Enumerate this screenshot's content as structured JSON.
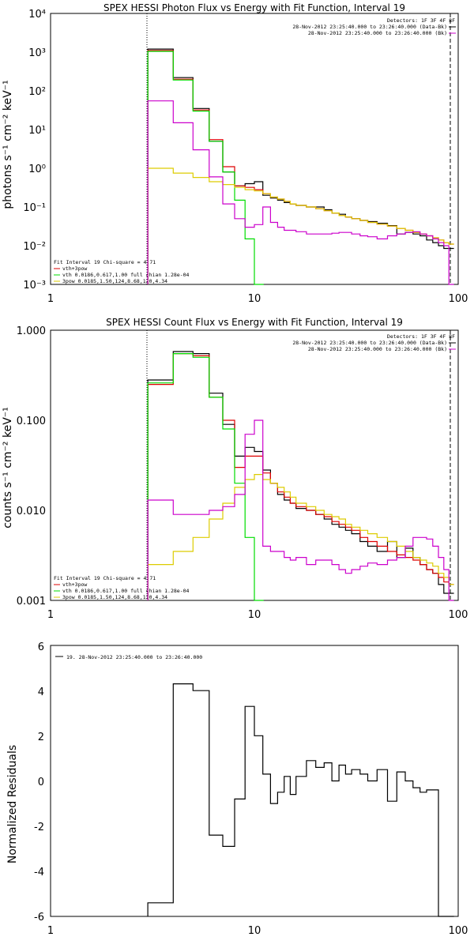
{
  "chart_data": [
    {
      "type": "line",
      "title": "SPEX HESSI Photon Flux vs Energy with Fit Function, Interval 19",
      "xlabel": "",
      "ylabel": "photons s⁻¹ cm⁻² keV⁻¹",
      "xscale": "log",
      "yscale": "log",
      "xlim": [
        1,
        100
      ],
      "ylim": [
        0.001,
        10000
      ],
      "x_ticks": [
        "1",
        "10",
        "100"
      ],
      "y_ticks": [
        "10⁻³",
        "10⁻²",
        "10⁻¹",
        "10⁰",
        "10¹",
        "10²",
        "10³",
        "10⁴"
      ],
      "fit_range": [
        3,
        90
      ],
      "info_right": [
        "Detectors: 1F 3F 4F 8F",
        "28-Nov-2012 23:25:40.000 to 23:26:40.000 (Data-Bk)",
        "28-Nov-2012 23:25:40.000 to 23:26:40.000 (Bk)"
      ],
      "info_left": [
        "Fit Interval 19   Chi-square = 4.71",
        "vth+3pow",
        "vth 0.0186,0.617,1.00  full chian 1.28e-04",
        "3pow 0.0185,1.50,124,8.68,120,4.34"
      ],
      "legend_position": "bottom-left",
      "series": [
        {
          "name": "",
          "color": "#000000",
          "x": [
            3,
            4,
            5,
            6,
            7,
            8,
            9,
            10,
            11,
            12,
            13,
            14,
            15,
            16,
            18,
            20,
            22,
            24,
            26,
            28,
            30,
            33,
            36,
            40,
            45,
            50,
            55,
            60,
            65,
            70,
            75,
            80,
            85,
            90
          ],
          "y": [
            1200,
            220,
            35,
            5,
            0.8,
            0.35,
            0.4,
            0.45,
            0.2,
            0.17,
            0.15,
            0.13,
            0.12,
            0.11,
            0.1,
            0.1,
            0.085,
            0.07,
            0.065,
            0.055,
            0.05,
            0.045,
            0.042,
            0.038,
            0.033,
            0.02,
            0.022,
            0.02,
            0.018,
            0.014,
            0.012,
            0.01,
            0.0085,
            0.0085
          ]
        },
        {
          "name": "vth+3pow",
          "color": "#dd0000",
          "x": [
            3,
            4,
            5,
            6,
            7,
            8,
            9,
            10,
            11,
            12,
            13,
            14,
            15,
            16,
            18,
            20,
            22,
            24,
            26,
            28,
            30,
            33,
            36,
            40,
            45,
            50,
            55,
            60,
            65,
            70,
            75,
            80,
            85,
            90
          ],
          "y": [
            1100,
            200,
            32,
            5.5,
            1.1,
            0.35,
            0.32,
            0.28,
            0.22,
            0.18,
            0.16,
            0.14,
            0.12,
            0.11,
            0.1,
            0.09,
            0.08,
            0.07,
            0.06,
            0.055,
            0.05,
            0.045,
            0.04,
            0.036,
            0.032,
            0.028,
            0.025,
            0.022,
            0.02,
            0.018,
            0.016,
            0.014,
            0.012,
            0.011
          ]
        },
        {
          "name": "vth 0.0186,0.617,1.00  full chian 1.28e-04",
          "color": "#00dd00",
          "x": [
            3,
            4,
            5,
            6,
            7,
            8,
            9,
            10
          ],
          "y": [
            1050,
            190,
            30,
            5,
            0.8,
            0.15,
            0.015,
            0.001
          ]
        },
        {
          "name": "3pow 0.0185,1.50,124,8.68,120,4.34",
          "color": "#ddcc00",
          "x": [
            3,
            4,
            5,
            6,
            7,
            8,
            9,
            10,
            11,
            12,
            13,
            14,
            15,
            16,
            18,
            20,
            22,
            24,
            26,
            28,
            30,
            33,
            36,
            40,
            45,
            50,
            55,
            60,
            65,
            70,
            75,
            80,
            85,
            90
          ],
          "y": [
            1.0,
            0.75,
            0.58,
            0.45,
            0.38,
            0.32,
            0.28,
            0.26,
            0.22,
            0.18,
            0.16,
            0.14,
            0.12,
            0.11,
            0.1,
            0.09,
            0.08,
            0.07,
            0.06,
            0.055,
            0.05,
            0.045,
            0.04,
            0.036,
            0.032,
            0.028,
            0.025,
            0.022,
            0.02,
            0.018,
            0.016,
            0.014,
            0.012,
            0.011
          ]
        },
        {
          "name": "",
          "color": "#cc00cc",
          "x": [
            3,
            4,
            5,
            6,
            7,
            8,
            9,
            10,
            11,
            12,
            13,
            14,
            15,
            16,
            18,
            20,
            22,
            24,
            26,
            28,
            30,
            33,
            36,
            40,
            45,
            50,
            55,
            60,
            65,
            70,
            75,
            80,
            85,
            90
          ],
          "y": [
            55,
            15,
            3,
            0.6,
            0.12,
            0.05,
            0.03,
            0.035,
            0.1,
            0.04,
            0.03,
            0.025,
            0.025,
            0.023,
            0.02,
            0.02,
            0.02,
            0.021,
            0.022,
            0.022,
            0.02,
            0.018,
            0.017,
            0.015,
            0.018,
            0.02,
            0.022,
            0.023,
            0.02,
            0.018,
            0.015,
            0.012,
            0.01,
            0.001
          ]
        }
      ]
    },
    {
      "type": "line",
      "title": "SPEX HESSI Count Flux vs Energy with Fit Function, Interval 19",
      "xlabel": "",
      "ylabel": "counts s⁻¹ cm⁻² keV⁻¹",
      "xscale": "log",
      "yscale": "log",
      "xlim": [
        1,
        100
      ],
      "ylim": [
        0.001,
        1
      ],
      "x_ticks": [
        "1",
        "10",
        "100"
      ],
      "y_ticks": [
        "0.001",
        "0.010",
        "0.100",
        "1.000"
      ],
      "fit_range": [
        3,
        90
      ],
      "info_right": [
        "Detectors: 1F 3F 4F 8F",
        "28-Nov-2012 23:25:40.000 to 23:26:40.000 (Data-Bk)",
        "28-Nov-2012 23:25:40.000 to 23:26:40.000 (Bk)"
      ],
      "info_left": [
        "Fit Interval 19   Chi-square = 4.71",
        "vth+3pow",
        "vth 0.0186,0.617,1.00  full chian 1.28e-04",
        "3pow 0.0185,1.50,124,8.68,120,4.34"
      ],
      "legend_position": "bottom-left",
      "series": [
        {
          "name": "",
          "color": "#000000",
          "x": [
            3,
            4,
            5,
            6,
            7,
            8,
            9,
            10,
            11,
            12,
            13,
            14,
            15,
            16,
            18,
            20,
            22,
            24,
            26,
            28,
            30,
            33,
            36,
            40,
            45,
            50,
            55,
            60,
            65,
            70,
            75,
            80,
            85,
            90
          ],
          "y": [
            0.28,
            0.58,
            0.55,
            0.2,
            0.09,
            0.04,
            0.05,
            0.045,
            0.028,
            0.02,
            0.015,
            0.013,
            0.012,
            0.0105,
            0.01,
            0.009,
            0.008,
            0.007,
            0.0065,
            0.006,
            0.0055,
            0.0045,
            0.004,
            0.0035,
            0.0045,
            0.003,
            0.0038,
            0.003,
            0.0025,
            0.0022,
            0.002,
            0.0015,
            0.0012,
            0.0012
          ]
        },
        {
          "name": "vth+3pow",
          "color": "#dd0000",
          "x": [
            3,
            4,
            5,
            6,
            7,
            8,
            9,
            10,
            11,
            12,
            13,
            14,
            15,
            16,
            18,
            20,
            22,
            24,
            26,
            28,
            30,
            33,
            36,
            40,
            45,
            50,
            55,
            60,
            65,
            70,
            75,
            80,
            85,
            90
          ],
          "y": [
            0.25,
            0.55,
            0.52,
            0.18,
            0.1,
            0.03,
            0.04,
            0.04,
            0.026,
            0.02,
            0.016,
            0.014,
            0.012,
            0.011,
            0.01,
            0.009,
            0.0085,
            0.0075,
            0.007,
            0.0065,
            0.006,
            0.005,
            0.0045,
            0.004,
            0.0035,
            0.0032,
            0.003,
            0.0028,
            0.0025,
            0.0022,
            0.002,
            0.0018,
            0.0016,
            0.0015
          ]
        },
        {
          "name": "vth 0.0186,0.617,1.00  full chian 1.28e-04",
          "color": "#00dd00",
          "x": [
            3,
            4,
            5,
            6,
            7,
            8,
            9,
            10
          ],
          "y": [
            0.26,
            0.55,
            0.5,
            0.18,
            0.08,
            0.02,
            0.005,
            0.001
          ]
        },
        {
          "name": "3pow 0.0185,1.50,124,8.68,120,4.34",
          "color": "#ddcc00",
          "x": [
            3,
            4,
            5,
            6,
            7,
            8,
            9,
            10,
            11,
            12,
            13,
            14,
            15,
            16,
            18,
            20,
            22,
            24,
            26,
            28,
            30,
            33,
            36,
            40,
            45,
            50,
            55,
            60,
            65,
            70,
            75,
            80,
            85,
            90
          ],
          "y": [
            0.0025,
            0.0035,
            0.005,
            0.008,
            0.012,
            0.018,
            0.022,
            0.025,
            0.022,
            0.02,
            0.018,
            0.016,
            0.014,
            0.012,
            0.011,
            0.01,
            0.009,
            0.0085,
            0.008,
            0.007,
            0.0065,
            0.006,
            0.0055,
            0.005,
            0.0045,
            0.004,
            0.0035,
            0.003,
            0.0028,
            0.0026,
            0.0024,
            0.002,
            0.0018,
            0.0015
          ]
        },
        {
          "name": "",
          "color": "#cc00cc",
          "x": [
            3,
            4,
            5,
            6,
            7,
            8,
            9,
            10,
            11,
            12,
            13,
            14,
            15,
            16,
            18,
            20,
            22,
            24,
            26,
            28,
            30,
            33,
            36,
            40,
            45,
            50,
            55,
            60,
            65,
            70,
            75,
            80,
            85,
            90
          ],
          "y": [
            0.013,
            0.009,
            0.009,
            0.01,
            0.011,
            0.015,
            0.07,
            0.1,
            0.004,
            0.0035,
            0.0035,
            0.003,
            0.0028,
            0.003,
            0.0025,
            0.0028,
            0.0028,
            0.0025,
            0.0022,
            0.002,
            0.0022,
            0.0024,
            0.0026,
            0.0025,
            0.0028,
            0.003,
            0.004,
            0.005,
            0.005,
            0.0048,
            0.004,
            0.003,
            0.0022,
            0.001
          ]
        }
      ]
    },
    {
      "type": "line",
      "title": "",
      "xlabel": "",
      "ylabel": "Normalized Residuals",
      "xscale": "log",
      "yscale": "linear",
      "xlim": [
        1,
        100
      ],
      "ylim": [
        -6,
        6
      ],
      "x_ticks": [
        "1",
        "10",
        "100"
      ],
      "y_ticks": [
        "-6",
        "-4",
        "-2",
        "0",
        "2",
        "4",
        "6"
      ],
      "legend_position": "top-left",
      "series": [
        {
          "name": "19. 28-Nov-2012 23:25:40.000 to 23:26:40.000",
          "color": "#000000",
          "x": [
            3,
            4,
            5,
            6,
            7,
            8,
            9,
            10,
            11,
            12,
            13,
            14,
            15,
            16,
            18,
            20,
            22,
            24,
            26,
            28,
            30,
            33,
            36,
            40,
            45,
            50,
            55,
            60,
            65,
            70,
            75,
            80,
            85,
            90
          ],
          "y": [
            -5.4,
            4.3,
            4.0,
            -2.4,
            -2.9,
            -0.8,
            3.3,
            2.0,
            0.3,
            -1.0,
            -0.5,
            0.2,
            -0.6,
            0.2,
            0.9,
            0.6,
            0.8,
            0.0,
            0.7,
            0.3,
            0.5,
            0.3,
            0.0,
            0.5,
            -0.9,
            0.4,
            0.0,
            -0.3,
            -0.5,
            -0.4,
            -0.4,
            -6.0,
            -6.0,
            -6.0
          ]
        }
      ]
    }
  ]
}
